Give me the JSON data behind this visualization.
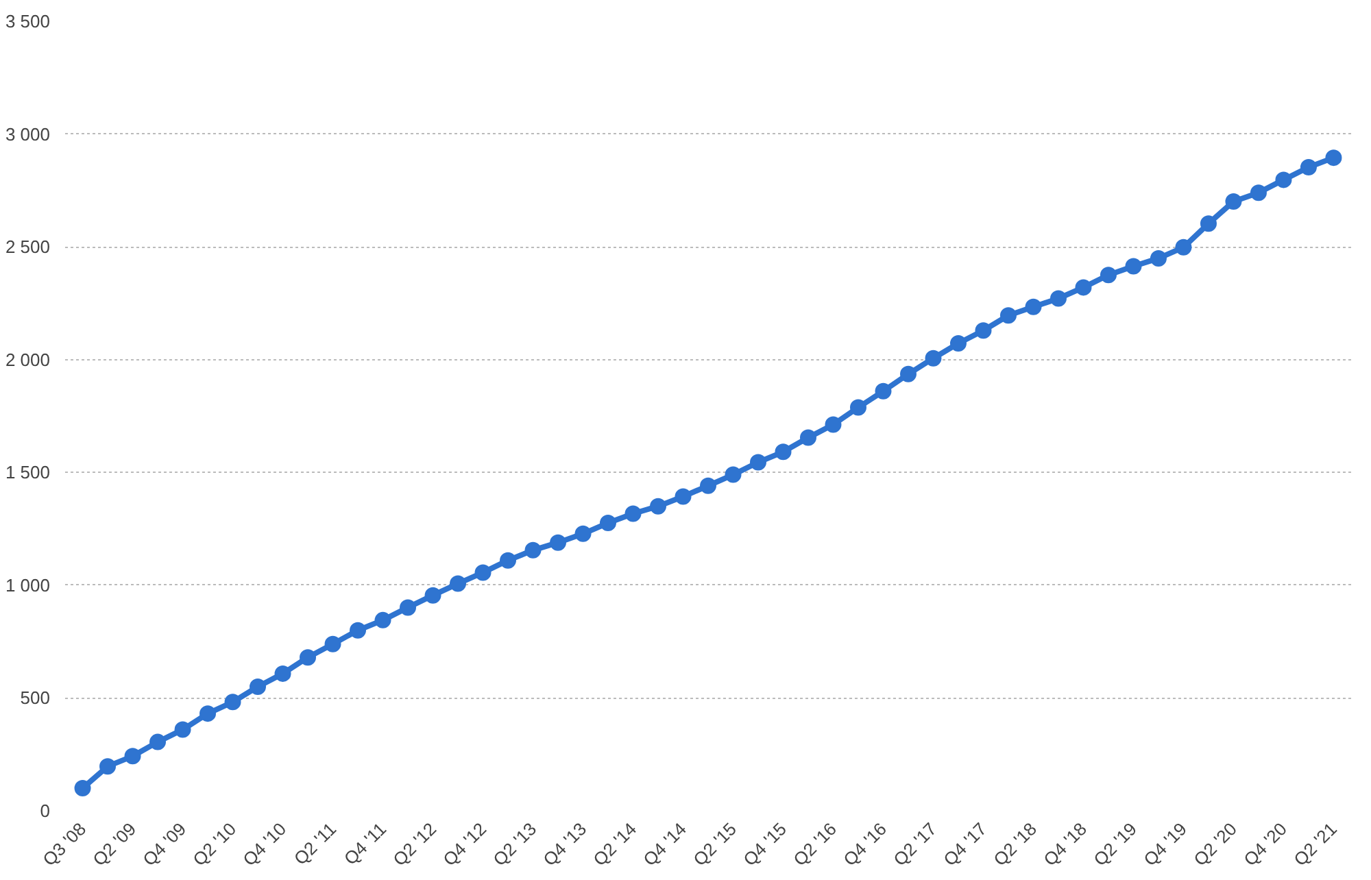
{
  "chart_data": {
    "type": "line",
    "categories": [
      "Q3 '08",
      null,
      "Q2 '09",
      null,
      "Q4 '09",
      null,
      "Q2 '10",
      null,
      "Q4 '10",
      null,
      "Q2 '11",
      null,
      "Q4 '11",
      null,
      "Q2 '12",
      null,
      "Q4 '12",
      null,
      "Q2 '13",
      null,
      "Q4 '13",
      null,
      "Q2 '14",
      null,
      "Q4 '14",
      null,
      "Q2 '15",
      null,
      "Q4 '15",
      null,
      "Q2 '16",
      null,
      "Q4 '16",
      null,
      "Q2 '17",
      null,
      "Q4 '17",
      null,
      "Q2 '18",
      null,
      "Q4 '18",
      null,
      "Q2 '19",
      null,
      "Q4 '19",
      null,
      "Q2 '20",
      null,
      "Q4 '20",
      null,
      "Q2 '21"
    ],
    "series": [
      {
        "color": "#2f74d0",
        "values": [
          100,
          197,
          242,
          305,
          360,
          431,
          482,
          550,
          608,
          680,
          739,
          800,
          845,
          901,
          955,
          1007,
          1056,
          1110,
          1155,
          1189,
          1228,
          1276,
          1317,
          1350,
          1393,
          1441,
          1490,
          1545,
          1591,
          1654,
          1712,
          1788,
          1860,
          1936,
          2006,
          2072,
          2129,
          2196,
          2234,
          2271,
          2320,
          2375,
          2414,
          2449,
          2498,
          2603,
          2701,
          2740,
          2797,
          2853,
          2895
        ]
      }
    ],
    "ylim": [
      0,
      3500
    ],
    "yticks": [
      0,
      {
        "value": 500,
        "label": "500"
      },
      {
        "value": 1000,
        "label": "1 000"
      },
      {
        "value": 1500,
        "label": "1 500"
      },
      {
        "value": 2000,
        "label": "2 000"
      },
      {
        "value": 2500,
        "label": "2 500"
      },
      {
        "value": 3000,
        "label": "3 000"
      },
      {
        "value": 3500,
        "label": "3 500"
      }
    ],
    "grid": "y",
    "marker": "circle",
    "line_style": "solid"
  }
}
